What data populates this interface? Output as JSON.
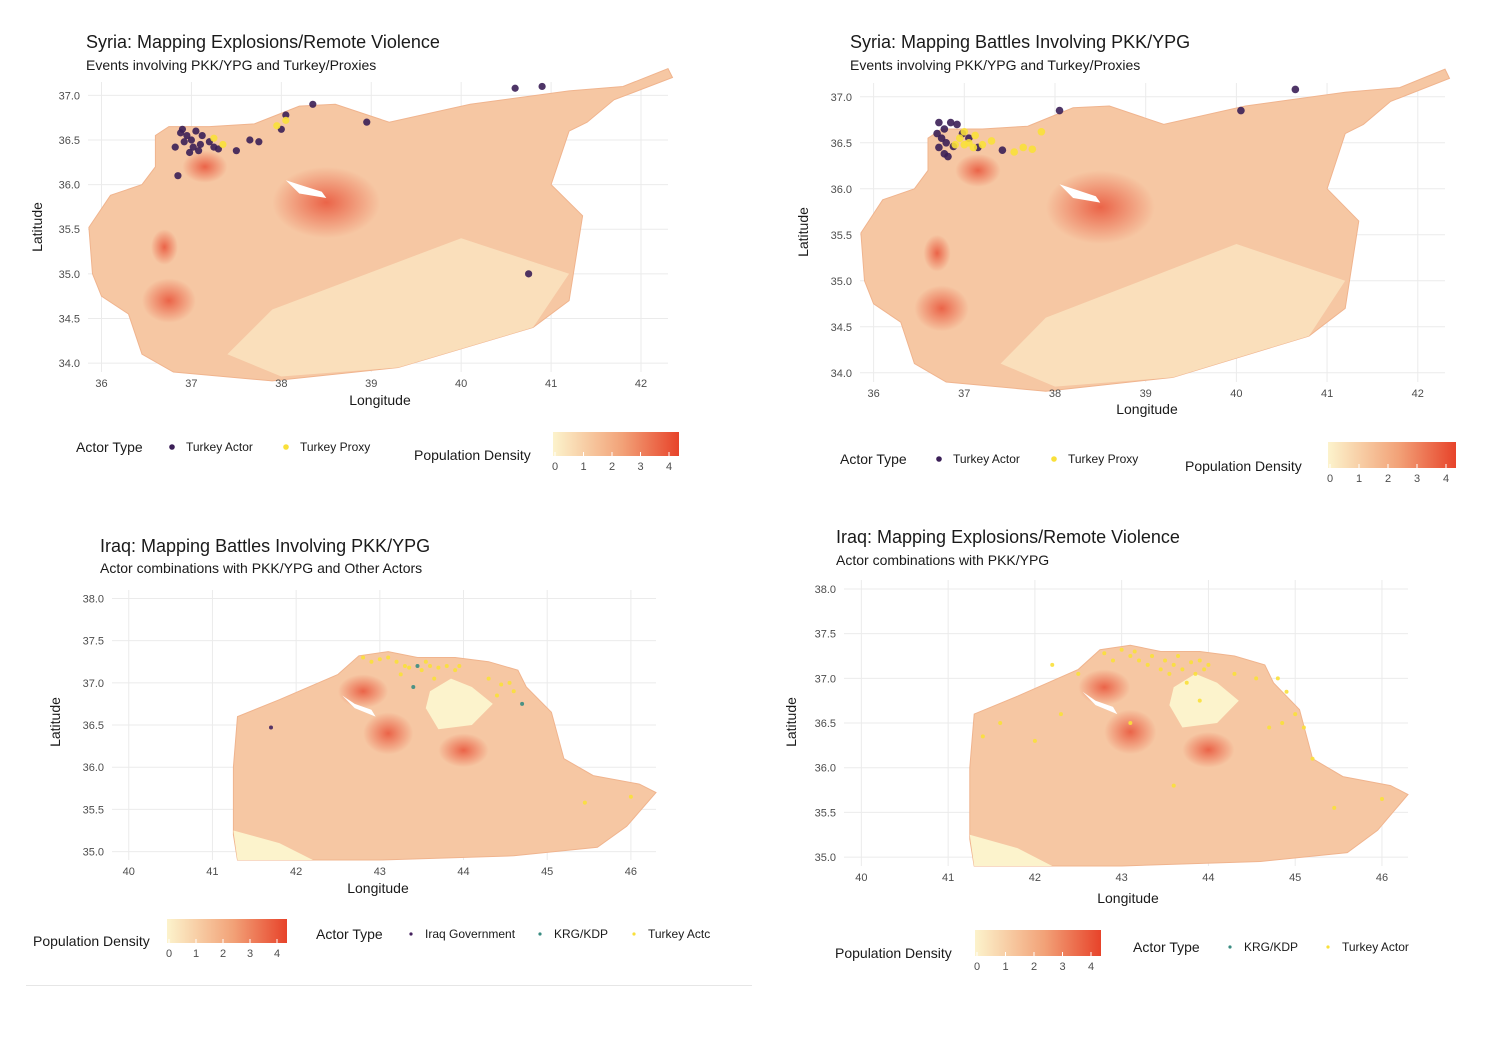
{
  "colors": {
    "turkey_actor": "#3b1f57",
    "turkey_proxy": "#f9e03a",
    "iraq_government": "#45225e",
    "krg_kdp": "#3a8c82",
    "density_low": "#fcf3cc",
    "density_high": "#e7432a"
  },
  "chart_data": [
    {
      "type": "scatter",
      "title": "Syria: Mapping Explosions/Remote Violence",
      "subtitle": "Events involving PKK/YPG and Turkey/Proxies",
      "xlabel": "Longitude",
      "ylabel": "Latitude",
      "xlim": [
        35.85,
        42.3
      ],
      "ylim": [
        33.9,
        37.15
      ],
      "xticks": [
        "36",
        "37",
        "38",
        "39",
        "40",
        "41",
        "42"
      ],
      "yticks": [
        "34.0",
        "34.5",
        "35.0",
        "35.5",
        "36.0",
        "36.5",
        "37.0"
      ],
      "grid": true,
      "legend_title": "Actor Type",
      "colorbar_title": "Population Density",
      "colorbar_ticks": [
        "0",
        "1",
        "2",
        "3",
        "4"
      ],
      "series": [
        {
          "name": "Turkey Actor",
          "points": [
            [
              36.9,
              36.62
            ],
            [
              36.95,
              36.55
            ],
            [
              37.0,
              36.5
            ],
            [
              37.05,
              36.6
            ],
            [
              37.1,
              36.45
            ],
            [
              37.02,
              36.42
            ],
            [
              36.92,
              36.48
            ],
            [
              37.12,
              36.55
            ],
            [
              37.2,
              36.48
            ],
            [
              37.25,
              36.42
            ],
            [
              36.88,
              36.58
            ],
            [
              37.08,
              36.38
            ],
            [
              36.98,
              36.36
            ],
            [
              37.3,
              36.4
            ],
            [
              36.85,
              36.1
            ],
            [
              37.5,
              36.38
            ],
            [
              37.65,
              36.5
            ],
            [
              37.75,
              36.48
            ],
            [
              38.05,
              36.78
            ],
            [
              38.0,
              36.62
            ],
            [
              38.35,
              36.9
            ],
            [
              38.95,
              36.7
            ],
            [
              40.6,
              37.08
            ],
            [
              40.9,
              37.1
            ],
            [
              40.75,
              35.0
            ],
            [
              36.82,
              36.42
            ]
          ]
        },
        {
          "name": "Turkey Proxy",
          "points": [
            [
              37.25,
              36.52
            ],
            [
              37.35,
              36.45
            ],
            [
              37.95,
              36.66
            ],
            [
              38.05,
              36.72
            ]
          ]
        }
      ]
    },
    {
      "type": "scatter",
      "title": "Syria: Mapping Battles Involving PKK/YPG",
      "subtitle": "Events involving PKK/YPG and Turkey/Proxies",
      "xlabel": "Longitude",
      "ylabel": "Latitude",
      "xlim": [
        35.85,
        42.3
      ],
      "ylim": [
        33.9,
        37.15
      ],
      "xticks": [
        "36",
        "37",
        "38",
        "39",
        "40",
        "41",
        "42"
      ],
      "yticks": [
        "34.0",
        "34.5",
        "35.0",
        "35.5",
        "36.0",
        "36.5",
        "37.0"
      ],
      "grid": true,
      "legend_title": "Actor Type",
      "colorbar_title": "Population Density",
      "colorbar_ticks": [
        "0",
        "1",
        "2",
        "3",
        "4"
      ],
      "series": [
        {
          "name": "Turkey Actor",
          "points": [
            [
              36.72,
              36.72
            ],
            [
              36.78,
              36.65
            ],
            [
              36.7,
              36.6
            ],
            [
              36.75,
              36.55
            ],
            [
              36.8,
              36.5
            ],
            [
              36.72,
              36.45
            ],
            [
              36.78,
              36.38
            ],
            [
              36.85,
              36.72
            ],
            [
              36.92,
              36.7
            ],
            [
              36.98,
              36.6
            ],
            [
              36.88,
              36.46
            ],
            [
              36.82,
              36.35
            ],
            [
              37.15,
              36.45
            ],
            [
              37.42,
              36.42
            ],
            [
              37.05,
              36.55
            ],
            [
              38.05,
              36.85
            ],
            [
              40.05,
              36.85
            ],
            [
              40.65,
              37.08
            ]
          ]
        },
        {
          "name": "Turkey Proxy",
          "points": [
            [
              36.95,
              36.55
            ],
            [
              37.0,
              36.48
            ],
            [
              37.05,
              36.5
            ],
            [
              37.1,
              36.45
            ],
            [
              37.0,
              36.62
            ],
            [
              37.2,
              36.48
            ],
            [
              37.3,
              36.52
            ],
            [
              37.55,
              36.4
            ],
            [
              37.65,
              36.45
            ],
            [
              37.85,
              36.62
            ],
            [
              37.75,
              36.43
            ],
            [
              36.9,
              36.48
            ],
            [
              37.12,
              36.58
            ]
          ]
        }
      ]
    },
    {
      "type": "scatter",
      "title": "Iraq: Mapping Battles Involving PKK/YPG",
      "subtitle": "Actor combinations with PKK/YPG and Other Actors",
      "xlabel": "Longitude",
      "ylabel": "Latitude",
      "xlim": [
        39.8,
        46.3
      ],
      "ylim": [
        34.9,
        38.1
      ],
      "xticks": [
        "40",
        "41",
        "42",
        "43",
        "44",
        "45",
        "46"
      ],
      "yticks": [
        "35.0",
        "35.5",
        "36.0",
        "36.5",
        "37.0",
        "37.5",
        "38.0"
      ],
      "grid": true,
      "legend_title": "Actor Type",
      "colorbar_title": "Population Density",
      "colorbar_ticks": [
        "0",
        "1",
        "2",
        "3",
        "4"
      ],
      "series": [
        {
          "name": "Iraq Government",
          "points": [
            [
              41.7,
              36.47
            ]
          ]
        },
        {
          "name": "KRG/KDP",
          "points": [
            [
              43.45,
              37.2
            ],
            [
              43.4,
              36.95
            ],
            [
              44.7,
              36.75
            ]
          ]
        },
        {
          "name": "Turkey Actc",
          "points": [
            [
              42.8,
              37.3
            ],
            [
              42.9,
              37.25
            ],
            [
              43.0,
              37.28
            ],
            [
              43.1,
              37.3
            ],
            [
              43.2,
              37.25
            ],
            [
              43.3,
              37.2
            ],
            [
              43.35,
              37.18
            ],
            [
              43.5,
              37.15
            ],
            [
              43.55,
              37.25
            ],
            [
              43.6,
              37.2
            ],
            [
              43.7,
              37.18
            ],
            [
              43.8,
              37.2
            ],
            [
              43.9,
              37.15
            ],
            [
              43.95,
              37.2
            ],
            [
              43.25,
              37.1
            ],
            [
              43.65,
              37.05
            ],
            [
              44.3,
              37.05
            ],
            [
              44.45,
              36.98
            ],
            [
              44.55,
              37.0
            ],
            [
              44.6,
              36.9
            ],
            [
              44.4,
              36.85
            ],
            [
              45.45,
              35.58
            ],
            [
              46.0,
              35.65
            ]
          ]
        }
      ]
    },
    {
      "type": "scatter",
      "title": "Iraq: Mapping Explosions/Remote Violence",
      "subtitle": "Actor combinations with PKK/YPG",
      "xlabel": "Longitude",
      "ylabel": "Latitude",
      "xlim": [
        39.8,
        46.3
      ],
      "ylim": [
        34.9,
        38.1
      ],
      "xticks": [
        "40",
        "41",
        "42",
        "43",
        "44",
        "45",
        "46"
      ],
      "yticks": [
        "35.0",
        "35.5",
        "36.0",
        "36.5",
        "37.0",
        "37.5",
        "38.0"
      ],
      "grid": true,
      "legend_title": "Actor Type",
      "colorbar_title": "Population Density",
      "colorbar_ticks": [
        "0",
        "1",
        "2",
        "3",
        "4"
      ],
      "series": [
        {
          "name": "KRG/KDP",
          "points": []
        },
        {
          "name": "Turkey Actor",
          "points": [
            [
              42.8,
              37.28
            ],
            [
              42.9,
              37.2
            ],
            [
              43.0,
              37.32
            ],
            [
              43.1,
              37.25
            ],
            [
              43.15,
              37.3
            ],
            [
              43.2,
              37.2
            ],
            [
              43.3,
              37.15
            ],
            [
              43.35,
              37.25
            ],
            [
              43.45,
              37.1
            ],
            [
              43.5,
              37.2
            ],
            [
              43.55,
              37.05
            ],
            [
              43.6,
              37.15
            ],
            [
              43.65,
              37.25
            ],
            [
              43.7,
              37.1
            ],
            [
              43.8,
              37.18
            ],
            [
              43.85,
              37.05
            ],
            [
              43.9,
              37.2
            ],
            [
              43.75,
              36.95
            ],
            [
              43.95,
              37.1
            ],
            [
              44.0,
              37.15
            ],
            [
              44.3,
              37.05
            ],
            [
              44.55,
              37.0
            ],
            [
              44.8,
              37.0
            ],
            [
              44.9,
              36.85
            ],
            [
              45.0,
              36.6
            ],
            [
              44.85,
              36.5
            ],
            [
              45.1,
              36.45
            ],
            [
              44.7,
              36.45
            ],
            [
              42.0,
              36.3
            ],
            [
              41.6,
              36.5
            ],
            [
              41.4,
              36.35
            ],
            [
              42.2,
              37.15
            ],
            [
              42.5,
              37.05
            ],
            [
              43.1,
              36.5
            ],
            [
              43.6,
              35.8
            ],
            [
              45.45,
              35.55
            ],
            [
              46.0,
              35.65
            ],
            [
              45.2,
              36.1
            ],
            [
              43.9,
              36.75
            ],
            [
              42.3,
              36.6
            ]
          ]
        }
      ]
    }
  ]
}
